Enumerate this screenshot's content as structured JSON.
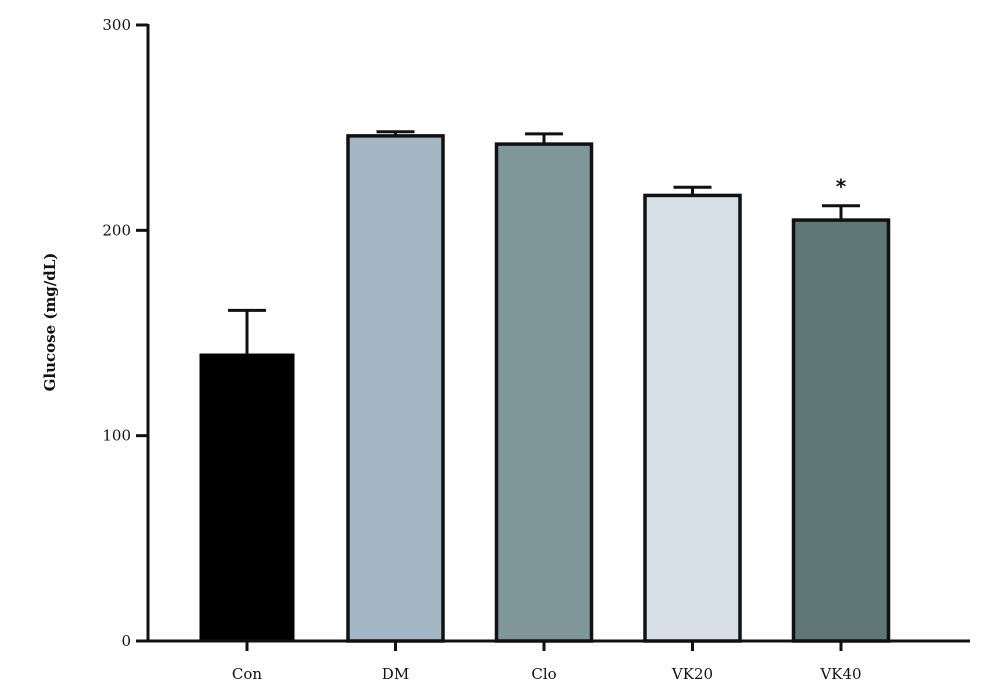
{
  "chart_data": {
    "type": "bar",
    "ylabel": "Glucose (mg/dL)",
    "xlabel": "",
    "ylim": [
      0,
      300
    ],
    "yticks": [
      0,
      100,
      200,
      300
    ],
    "grid": false,
    "categories": [
      "Con",
      "DM",
      "Clo",
      "VK20",
      "VK40"
    ],
    "values": [
      140,
      246,
      242,
      217,
      205
    ],
    "errors": [
      21,
      2,
      5,
      4,
      7
    ],
    "colors": [
      "#000000",
      "#a4b7c4",
      "#7f979a",
      "#d6e0e6",
      "#5f7676"
    ],
    "annotations": [
      "",
      "",
      "",
      "",
      "*"
    ]
  }
}
